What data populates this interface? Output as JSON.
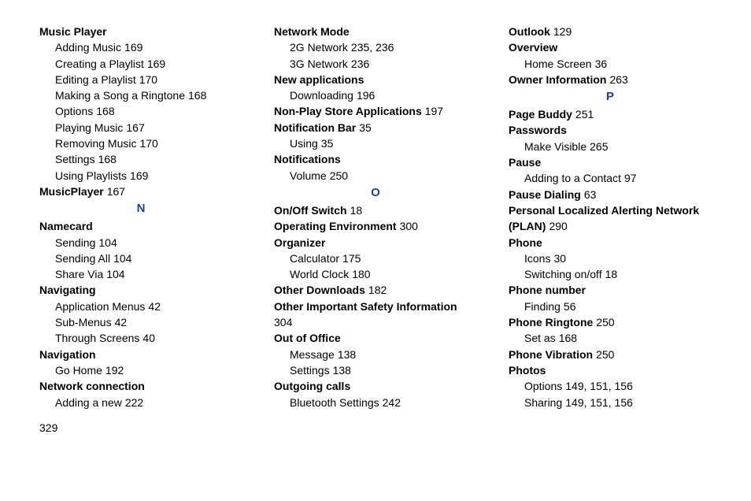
{
  "footer_page": "329",
  "columns": [
    [
      {
        "type": "top",
        "text": "Music Player"
      },
      {
        "type": "sub",
        "text": "Adding Music",
        "page": "169"
      },
      {
        "type": "sub",
        "text": "Creating a Playlist",
        "page": "169"
      },
      {
        "type": "sub",
        "text": "Editing a Playlist",
        "page": "170"
      },
      {
        "type": "sub",
        "text": "Making a Song a Ringtone",
        "page": "168"
      },
      {
        "type": "sub",
        "text": "Options",
        "page": "168"
      },
      {
        "type": "sub",
        "text": "Playing Music",
        "page": "167"
      },
      {
        "type": "sub",
        "text": "Removing Music",
        "page": "170"
      },
      {
        "type": "sub",
        "text": "Settings",
        "page": "168"
      },
      {
        "type": "sub",
        "text": "Using Playlists",
        "page": "169"
      },
      {
        "type": "top",
        "text": "MusicPlayer",
        "page": "167"
      },
      {
        "type": "letter",
        "text": "N"
      },
      {
        "type": "top",
        "text": "Namecard"
      },
      {
        "type": "sub",
        "text": "Sending",
        "page": "104"
      },
      {
        "type": "sub",
        "text": "Sending All",
        "page": "104"
      },
      {
        "type": "sub",
        "text": "Share Via",
        "page": "104"
      },
      {
        "type": "top",
        "text": "Navigating"
      },
      {
        "type": "sub",
        "text": "Application Menus",
        "page": "42"
      },
      {
        "type": "sub",
        "text": "Sub-Menus",
        "page": "42"
      },
      {
        "type": "sub",
        "text": "Through Screens",
        "page": "40"
      },
      {
        "type": "top",
        "text": "Navigation"
      },
      {
        "type": "sub",
        "text": "Go Home",
        "page": "192"
      },
      {
        "type": "top",
        "text": "Network connection"
      },
      {
        "type": "sub",
        "text": "Adding a new",
        "page": "222"
      }
    ],
    [
      {
        "type": "top",
        "text": "Network Mode"
      },
      {
        "type": "sub",
        "text": "2G Network",
        "page": "235, 236"
      },
      {
        "type": "sub",
        "text": "3G Network",
        "page": "236"
      },
      {
        "type": "top",
        "text": "New applications"
      },
      {
        "type": "sub",
        "text": "Downloading",
        "page": "196"
      },
      {
        "type": "top",
        "text": "Non-Play Store Applications",
        "page": "197"
      },
      {
        "type": "top",
        "text": "Notification Bar",
        "page": "35"
      },
      {
        "type": "sub",
        "text": "Using",
        "page": "35"
      },
      {
        "type": "top",
        "text": "Notifications"
      },
      {
        "type": "sub",
        "text": "Volume",
        "page": "250"
      },
      {
        "type": "letter",
        "text": "O"
      },
      {
        "type": "top",
        "text": "On/Off Switch",
        "page": "18"
      },
      {
        "type": "top",
        "text": "Operating Environment",
        "page": "300"
      },
      {
        "type": "top",
        "text": "Organizer"
      },
      {
        "type": "sub",
        "text": "Calculator",
        "page": "175"
      },
      {
        "type": "sub",
        "text": "World Clock",
        "page": "180"
      },
      {
        "type": "top",
        "text": "Other Downloads",
        "page": "182"
      },
      {
        "type": "top",
        "text": "Other Important Safety Information",
        "page": "304",
        "inline_page": true
      },
      {
        "type": "top",
        "text": "Out of Office"
      },
      {
        "type": "sub",
        "text": "Message",
        "page": "138"
      },
      {
        "type": "sub",
        "text": "Settings",
        "page": "138"
      },
      {
        "type": "top",
        "text": "Outgoing calls"
      },
      {
        "type": "sub",
        "text": "Bluetooth Settings",
        "page": "242"
      }
    ],
    [
      {
        "type": "top",
        "text": "Outlook",
        "page": "129"
      },
      {
        "type": "top",
        "text": "Overview"
      },
      {
        "type": "sub",
        "text": "Home Screen",
        "page": "36"
      },
      {
        "type": "top",
        "text": "Owner Information",
        "page": "263"
      },
      {
        "type": "letter",
        "text": "P"
      },
      {
        "type": "top",
        "text": "Page Buddy",
        "page": "251"
      },
      {
        "type": "top",
        "text": "Passwords"
      },
      {
        "type": "sub",
        "text": "Make Visible",
        "page": "265"
      },
      {
        "type": "top",
        "text": "Pause"
      },
      {
        "type": "sub",
        "text": "Adding to a Contact",
        "page": "97"
      },
      {
        "type": "top",
        "text": "Pause Dialing",
        "page": "63"
      },
      {
        "type": "top",
        "text": "Personal Localized Alerting Network (PLAN)",
        "page": "290"
      },
      {
        "type": "top",
        "text": "Phone"
      },
      {
        "type": "sub",
        "text": "Icons",
        "page": "30"
      },
      {
        "type": "sub",
        "text": "Switching on/off",
        "page": "18"
      },
      {
        "type": "top",
        "text": "Phone number"
      },
      {
        "type": "sub",
        "text": "Finding",
        "page": "56"
      },
      {
        "type": "top",
        "text": "Phone Ringtone",
        "page": "250"
      },
      {
        "type": "sub",
        "text": "Set as",
        "page": "168"
      },
      {
        "type": "top",
        "text": "Phone Vibration",
        "page": "250"
      },
      {
        "type": "top",
        "text": "Photos"
      },
      {
        "type": "sub",
        "text": "Options",
        "page": "149, 151, 156"
      },
      {
        "type": "sub",
        "text": "Sharing",
        "page": "149, 151, 156"
      }
    ]
  ]
}
